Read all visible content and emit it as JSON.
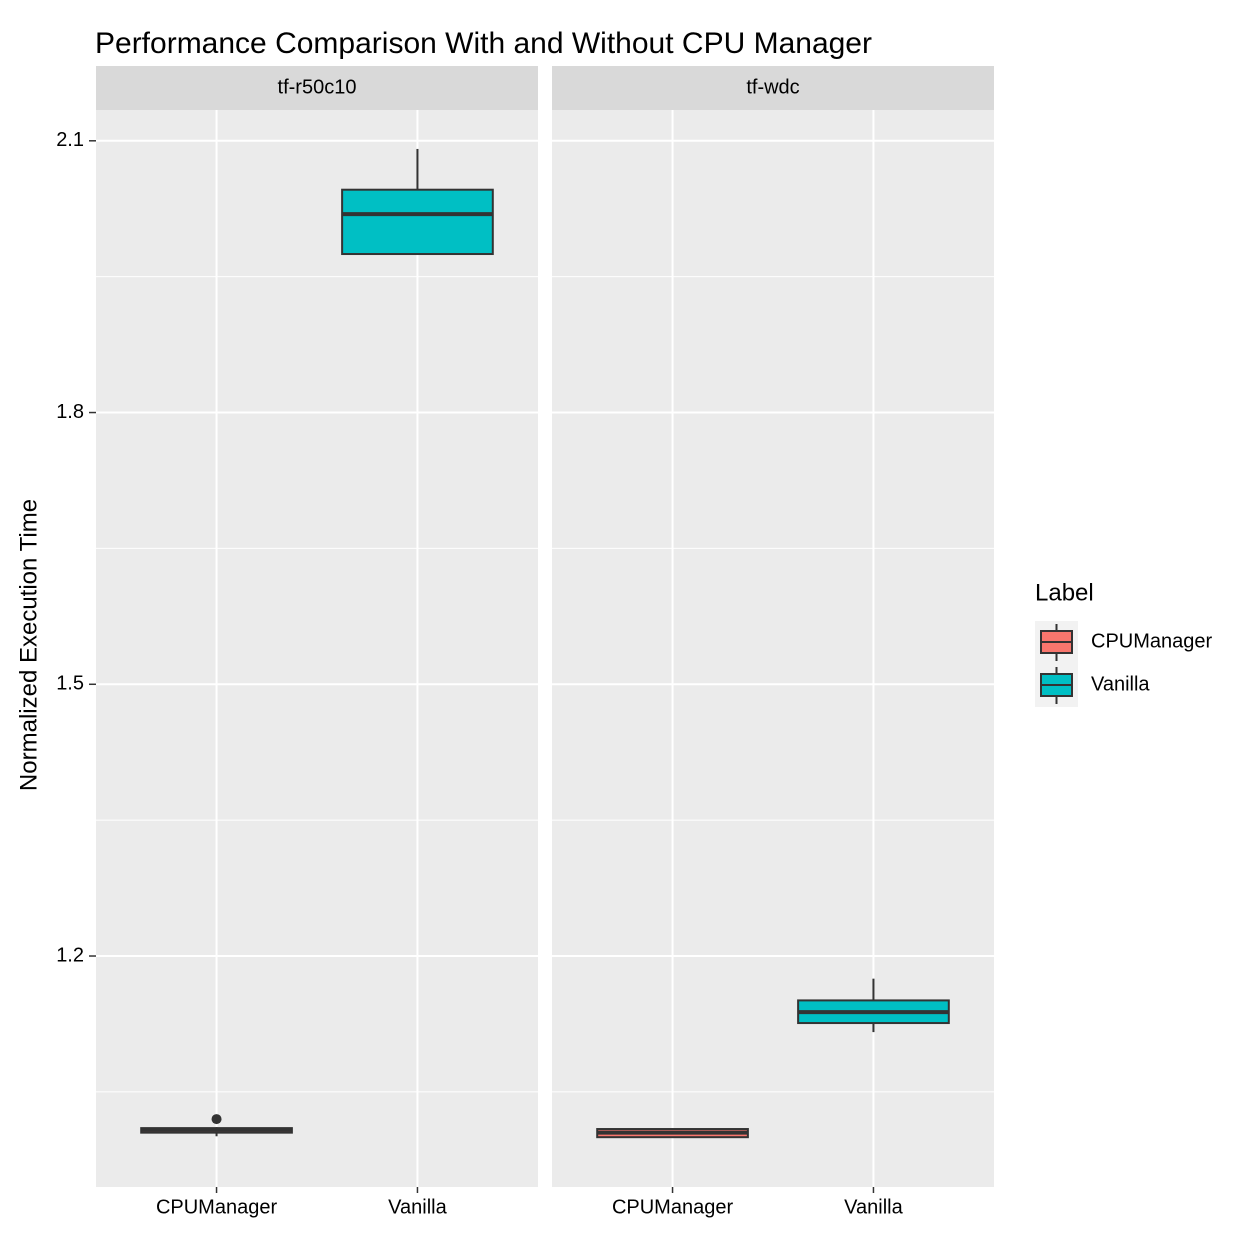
{
  "chart_data": {
    "type": "box",
    "title": "Performance Comparison With and Without CPU Manager",
    "y_label": "Normalized Execution Time",
    "legend_title": "Label",
    "categories": [
      "CPUManager",
      "Vanilla"
    ],
    "series": [
      {
        "name": "CPUManager",
        "color": "#f8766d"
      },
      {
        "name": "Vanilla",
        "color": "#00bfc4"
      }
    ],
    "ylim": [
      0.945,
      2.134
    ],
    "yticks": [
      1.2,
      1.5,
      1.8,
      2.1
    ],
    "grid": true,
    "facets": [
      {
        "title": "tf-r50c10",
        "boxes": [
          {
            "min": 1.001,
            "q1": 1.005,
            "median": 1.008,
            "q3": 1.01,
            "max": 1.011,
            "outliers": [
              1.02
            ]
          },
          {
            "min": 1.975,
            "q1": 1.975,
            "median": 2.019,
            "q3": 2.046,
            "max": 2.091,
            "outliers": []
          }
        ]
      },
      {
        "title": "tf-wdc",
        "boxes": [
          {
            "min": 1.0,
            "q1": 1.0,
            "median": 1.005,
            "q3": 1.009,
            "max": 1.009,
            "outliers": []
          },
          {
            "min": 1.116,
            "q1": 1.126,
            "median": 1.138,
            "q3": 1.151,
            "max": 1.175,
            "outliers": []
          }
        ]
      }
    ]
  }
}
